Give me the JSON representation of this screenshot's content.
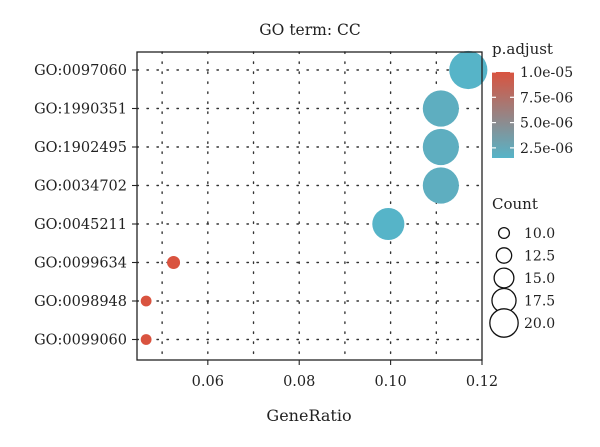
{
  "chart_data": {
    "type": "scatter",
    "title": "GO term: CC",
    "xlabel": "GeneRatio",
    "ylabel": "",
    "xlim": [
      0.0445,
      0.12
    ],
    "xticks": [
      0.06,
      0.08,
      0.1,
      0.12
    ],
    "xtick_labels": [
      "0.06",
      "0.08",
      "0.10",
      "0.12"
    ],
    "grid": true,
    "categories": [
      "GO:0097060",
      "GO:1990351",
      "GO:1902495",
      "GO:0034702",
      "GO:0045211",
      "GO:0099634",
      "GO:0098948",
      "GO:0099060"
    ],
    "points": [
      {
        "term": "GO:0097060",
        "gene_ratio": 0.117,
        "count": 22,
        "p_adjust": 1.5e-06
      },
      {
        "term": "GO:1990351",
        "gene_ratio": 0.111,
        "count": 21,
        "p_adjust": 2e-06
      },
      {
        "term": "GO:1902495",
        "gene_ratio": 0.111,
        "count": 21,
        "p_adjust": 2e-06
      },
      {
        "term": "GO:0034702",
        "gene_ratio": 0.111,
        "count": 21,
        "p_adjust": 2e-06
      },
      {
        "term": "GO:0045211",
        "gene_ratio": 0.0995,
        "count": 19,
        "p_adjust": 1.5e-06
      },
      {
        "term": "GO:0099634",
        "gene_ratio": 0.0525,
        "count": 10,
        "p_adjust": 1e-05
      },
      {
        "term": "GO:0098948",
        "gene_ratio": 0.0465,
        "count": 9,
        "p_adjust": 1e-05
      },
      {
        "term": "GO:0099060",
        "gene_ratio": 0.0465,
        "count": 9,
        "p_adjust": 1e-05
      }
    ],
    "color_legend": {
      "title": "p.adjust",
      "labels": [
        "1.0e-05",
        "7.5e-06",
        "5.0e-06",
        "2.5e-06"
      ],
      "values": [
        1e-05,
        7.5e-06,
        5e-06,
        2.5e-06
      ],
      "range": [
        1.5e-06,
        1e-05
      ],
      "high_color": "#d9533f",
      "low_color": "#56b4c8"
    },
    "size_legend": {
      "title": "Count",
      "labels": [
        "10.0",
        "12.5",
        "15.0",
        "17.5",
        "20.0"
      ],
      "values": [
        10,
        12.5,
        15,
        17.5,
        20
      ]
    },
    "legend_position": "right"
  }
}
